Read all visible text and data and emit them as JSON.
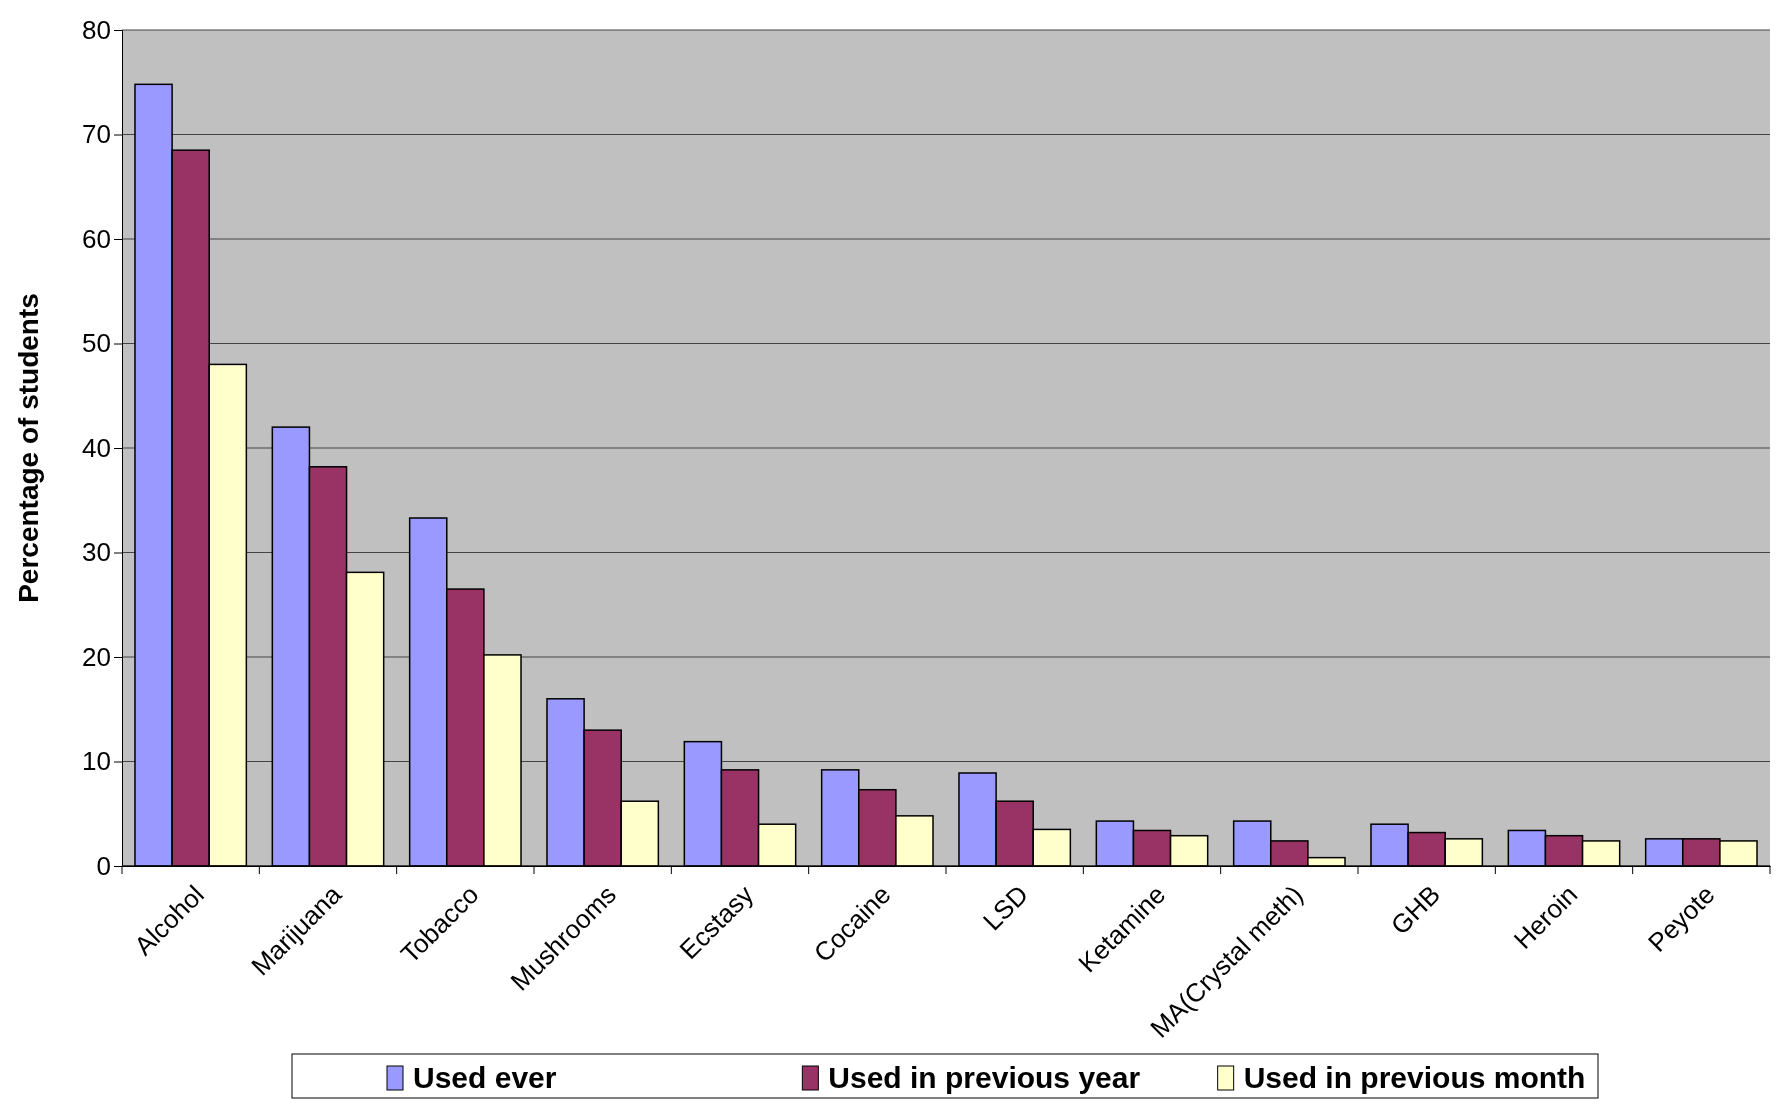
{
  "chart_data": {
    "type": "bar",
    "ylabel": "Percentage of students",
    "categories": [
      "Alcohol",
      "Marijuana",
      "Tobacco",
      "Mushrooms",
      "Ecstasy",
      "Cocaine",
      "LSD",
      "Ketamine",
      "MA(Crystal meth)",
      "GHB",
      "Heroin",
      "Peyote"
    ],
    "series": [
      {
        "name": "Used ever",
        "color": "#9999ff",
        "values": [
          74.8,
          42,
          33.3,
          16,
          11.9,
          9.2,
          8.9,
          4.3,
          4.3,
          4.0,
          3.4,
          2.6
        ]
      },
      {
        "name": "Used in previous year",
        "color": "#993366",
        "values": [
          68.5,
          38.2,
          26.5,
          13,
          9.2,
          7.3,
          6.2,
          3.4,
          2.4,
          3.2,
          2.9,
          2.6
        ]
      },
      {
        "name": "Used in previous month",
        "color": "#ffffcc",
        "values": [
          48,
          28.1,
          20.2,
          6.2,
          4,
          4.8,
          3.5,
          2.9,
          0.8,
          2.6,
          2.4,
          2.4
        ]
      }
    ],
    "ylim": [
      0,
      80
    ],
    "yticks": [
      0,
      10,
      20,
      30,
      40,
      50,
      60,
      70,
      80
    ],
    "grid": "y",
    "legend": "bottom"
  }
}
